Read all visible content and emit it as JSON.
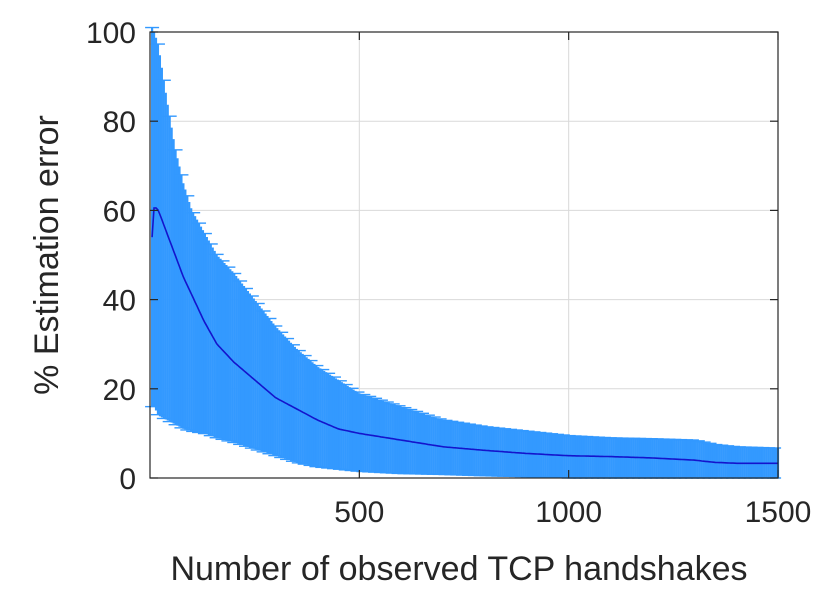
{
  "chart_data": {
    "type": "line",
    "title": "",
    "xlabel": "Number of observed TCP handshakes",
    "ylabel": "% Estimation error",
    "xlim": [
      0,
      1500
    ],
    "ylim": [
      0,
      100
    ],
    "xticks": [
      500,
      1000,
      1500
    ],
    "yticks": [
      0,
      20,
      40,
      60,
      80,
      100
    ],
    "xtick_labels": [
      "500",
      "1000",
      "1500"
    ],
    "ytick_labels": [
      "0",
      "20",
      "40",
      "60",
      "80",
      "100"
    ],
    "grid": true,
    "legend": "none",
    "series": [
      {
        "kind": "errorbar",
        "x": [
          5,
          10,
          20,
          40,
          60,
          80,
          100,
          130,
          160,
          200,
          250,
          300,
          350,
          400,
          450,
          500,
          600,
          700,
          800,
          900,
          1000,
          1100,
          1200,
          1300,
          1350,
          1400,
          1500
        ],
        "y": [
          54,
          61,
          60,
          55,
          50,
          45,
          41,
          35,
          30,
          26,
          22,
          18,
          15.5,
          13,
          11,
          10,
          8.5,
          7,
          6.2,
          5.5,
          5,
          4.8,
          4.5,
          4,
          3.5,
          3.3,
          3.3
        ],
        "upper": [
          101,
          100,
          97,
          85,
          74,
          66,
          60,
          55,
          50,
          46,
          40,
          34,
          29,
          25,
          22,
          19,
          16,
          13,
          11.5,
          10.5,
          9.5,
          9,
          8.8,
          8.5,
          7.5,
          7,
          6.7
        ],
        "lower": [
          16,
          16,
          14,
          13,
          12,
          11,
          10.5,
          10,
          9,
          8,
          6.5,
          5,
          3.5,
          2.5,
          2,
          1.5,
          1,
          0.8,
          0.5,
          0.3,
          0,
          0,
          0,
          0,
          0,
          0,
          0
        ]
      }
    ],
    "colors": {
      "band": "#3399ff",
      "line": "#1414cc",
      "grid": "#d9d9d9",
      "axis": "#262626"
    }
  }
}
